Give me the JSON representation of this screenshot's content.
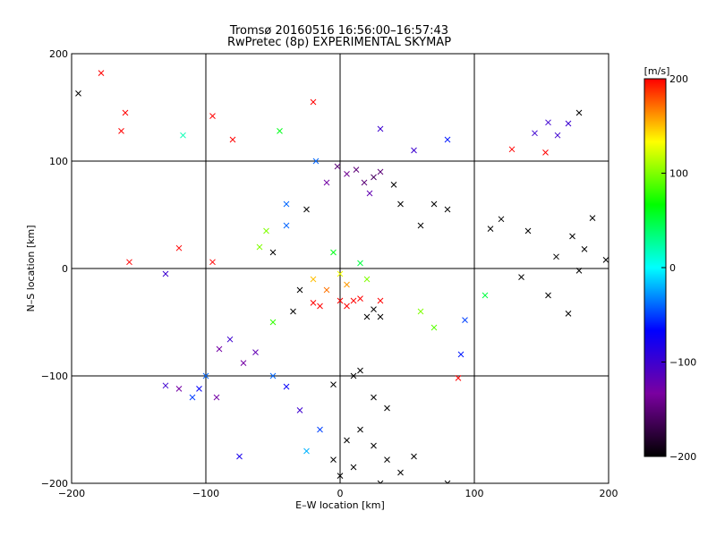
{
  "chart_data": {
    "type": "scatter",
    "title": "Tromsø 20160516 16:56:00–16:57:43",
    "subtitle": "RwPretec (8p) EXPERIMENTAL SKYMAP",
    "xlabel": "E–W location [km]",
    "ylabel": "N–S location [km]",
    "xlim": [
      -200,
      200
    ],
    "ylim": [
      -200,
      200
    ],
    "xticks": [
      -200,
      -100,
      0,
      100,
      200
    ],
    "yticks": [
      -200,
      -100,
      0,
      100,
      200
    ],
    "grid": true,
    "colorbar": {
      "label": "[m/s]",
      "range": [
        -200,
        200
      ],
      "ticks": [
        -200,
        -100,
        0,
        100,
        200
      ],
      "colormap": "rainbow",
      "stops": [
        "#000000",
        "#7a00a0",
        "#0000ff",
        "#00ffff",
        "#00ff00",
        "#ffff00",
        "#ff0000"
      ]
    },
    "markers": {
      "large": "cross",
      "small": "dot"
    },
    "series": [
      {
        "points": [
          [
            -195,
            163,
            -200,
            1
          ],
          [
            -178,
            182,
            200,
            1
          ],
          [
            -160,
            145,
            200,
            1
          ],
          [
            -163,
            128,
            200,
            1
          ],
          [
            -157,
            6,
            200,
            1
          ],
          [
            -120,
            19,
            200,
            1
          ],
          [
            -130,
            -5,
            -100,
            1
          ],
          [
            -95,
            6,
            200,
            1
          ],
          [
            -117,
            124,
            20,
            1
          ],
          [
            -95,
            142,
            200,
            1
          ],
          [
            -80,
            120,
            200,
            1
          ],
          [
            -120,
            -112,
            -130,
            1
          ],
          [
            -130,
            -109,
            -100,
            1
          ],
          [
            -105,
            -112,
            -70,
            1
          ],
          [
            -92,
            -120,
            -130,
            1
          ],
          [
            -82,
            -66,
            -100,
            1
          ],
          [
            -90,
            -75,
            -130,
            1
          ],
          [
            -63,
            -78,
            -120,
            1
          ],
          [
            -72,
            -88,
            -130,
            1
          ],
          [
            -100,
            -100,
            -40,
            1
          ],
          [
            -110,
            -120,
            -50,
            1
          ],
          [
            145,
            126,
            -100,
            1
          ],
          [
            155,
            136,
            -100,
            1
          ],
          [
            162,
            124,
            -100,
            1
          ],
          [
            170,
            135,
            -100,
            1
          ],
          [
            178,
            145,
            -200,
            1
          ],
          [
            128,
            111,
            200,
            1
          ],
          [
            153,
            108,
            200,
            1
          ],
          [
            188,
            47,
            -200,
            1
          ],
          [
            173,
            30,
            -200,
            1
          ],
          [
            161,
            11,
            -200,
            1
          ],
          [
            182,
            18,
            -200,
            1
          ],
          [
            198,
            8,
            -200,
            1
          ],
          [
            178,
            -2,
            -200,
            1
          ],
          [
            140,
            35,
            -200,
            1
          ],
          [
            120,
            46,
            -200,
            1
          ],
          [
            112,
            37,
            -200,
            1
          ],
          [
            135,
            -8,
            -200,
            1
          ],
          [
            155,
            -25,
            -200,
            1
          ],
          [
            170,
            -42,
            -200,
            1
          ],
          [
            108,
            -25,
            50,
            1
          ],
          [
            93,
            -48,
            -50,
            1
          ],
          [
            90,
            -80,
            -60,
            1
          ],
          [
            88,
            -102,
            200,
            1
          ],
          [
            5,
            88,
            -140,
            1
          ],
          [
            12,
            92,
            -150,
            1
          ],
          [
            18,
            80,
            -150,
            1
          ],
          [
            25,
            85,
            -160,
            1
          ],
          [
            30,
            90,
            -150,
            1
          ],
          [
            -10,
            80,
            -130,
            1
          ],
          [
            -2,
            95,
            -150,
            1
          ],
          [
            -18,
            100,
            -40,
            1
          ],
          [
            22,
            70,
            -120,
            1
          ],
          [
            40,
            78,
            -200,
            1
          ],
          [
            45,
            60,
            -200,
            1
          ],
          [
            60,
            40,
            -200,
            1
          ],
          [
            70,
            60,
            -200,
            1
          ],
          [
            80,
            55,
            -200,
            1
          ],
          [
            -25,
            55,
            -200,
            1
          ],
          [
            -40,
            40,
            -40,
            1
          ],
          [
            -50,
            15,
            -200,
            1
          ],
          [
            -30,
            -20,
            -200,
            1
          ],
          [
            -20,
            -32,
            200,
            1
          ],
          [
            10,
            -30,
            200,
            1
          ],
          [
            25,
            -38,
            -200,
            1
          ],
          [
            30,
            -45,
            -200,
            1
          ],
          [
            20,
            -45,
            -200,
            1
          ],
          [
            -35,
            -40,
            -200,
            1
          ],
          [
            10,
            -100,
            -200,
            1
          ],
          [
            -5,
            -108,
            -200,
            1
          ],
          [
            15,
            -95,
            -200,
            1
          ],
          [
            25,
            -120,
            -200,
            1
          ],
          [
            35,
            -130,
            -200,
            1
          ],
          [
            15,
            -150,
            -200,
            1
          ],
          [
            25,
            -165,
            -200,
            1
          ],
          [
            35,
            -178,
            -200,
            1
          ],
          [
            45,
            -190,
            -200,
            1
          ],
          [
            5,
            -160,
            -200,
            1
          ],
          [
            -5,
            -178,
            -200,
            1
          ],
          [
            0,
            -193,
            -200,
            1
          ],
          [
            10,
            -185,
            -200,
            1
          ],
          [
            30,
            -200,
            -200,
            1
          ],
          [
            55,
            -175,
            -200,
            1
          ],
          [
            80,
            -200,
            -200,
            1
          ],
          [
            -15,
            -150,
            -50,
            1
          ],
          [
            -30,
            -132,
            -100,
            1
          ],
          [
            -40,
            -110,
            -70,
            1
          ],
          [
            -50,
            -100,
            -40,
            1
          ],
          [
            -25,
            -170,
            -20,
            1
          ],
          [
            -10,
            -20,
            170,
            1
          ],
          [
            0,
            -5,
            130,
            1
          ],
          [
            5,
            -15,
            160,
            1
          ],
          [
            15,
            5,
            50,
            1
          ],
          [
            -5,
            15,
            60,
            1
          ],
          [
            20,
            -10,
            100,
            1
          ],
          [
            -20,
            -10,
            150,
            1
          ],
          [
            0,
            -30,
            200,
            1
          ],
          [
            5,
            -35,
            200,
            1
          ],
          [
            15,
            -28,
            200,
            1
          ],
          [
            30,
            -30,
            200,
            1
          ],
          [
            -15,
            -35,
            200,
            1
          ],
          [
            -40,
            60,
            -40,
            1
          ],
          [
            -55,
            35,
            100,
            1
          ],
          [
            -60,
            20,
            100,
            1
          ],
          [
            -50,
            -50,
            80,
            1
          ],
          [
            60,
            -40,
            100,
            1
          ],
          [
            70,
            -55,
            90,
            1
          ],
          [
            -45,
            128,
            60,
            1
          ],
          [
            -20,
            155,
            200,
            1
          ],
          [
            30,
            130,
            -100,
            1
          ],
          [
            55,
            110,
            -100,
            1
          ],
          [
            80,
            120,
            -60,
            1
          ],
          [
            -75,
            -175,
            -80,
            1
          ]
        ]
      }
    ]
  }
}
